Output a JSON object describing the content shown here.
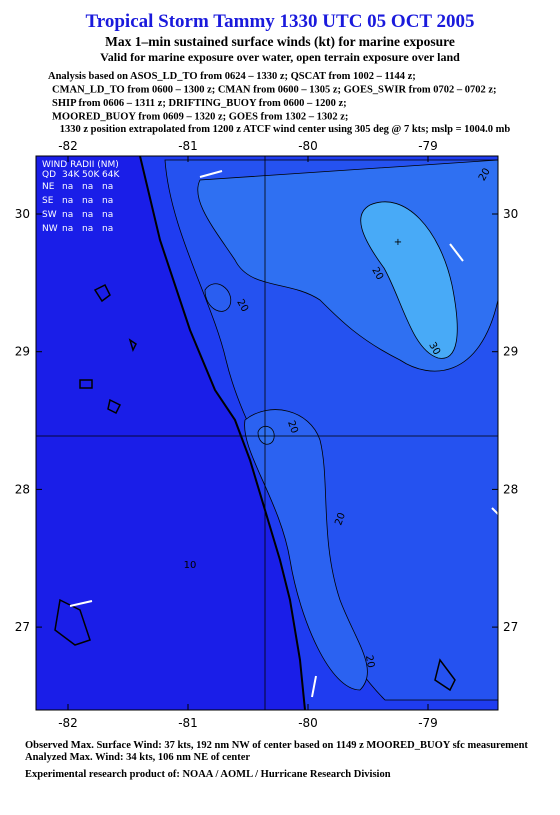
{
  "title": "Tropical Storm Tammy 1330 UTC 05 OCT 2005",
  "subtitle": "Max 1–min sustained surface winds (kt) for marine exposure",
  "subtitle2": "Valid for marine exposure over water, open terrain exposure over land",
  "analysis_lines": [
    "Analysis based on  ASOS_LD_TO from 0624 – 1330 z;  QSCAT from 1002 – 1144 z;",
    "CMAN_LD_TO from 0600 – 1300 z;  CMAN from 0600 – 1305 z;  GOES_SWIR from 0702 – 0702 z;",
    "SHIP from 0606 – 1311 z;  DRIFTING_BUOY from 0600 – 1200 z;",
    "MOORED_BUOY from 0609 – 1320 z;  GOES from 1302 – 1302 z;"
  ],
  "position_note": "1330 z position extrapolated from 1200 z ATCF wind center using 305 deg @ 7 kts; mslp = 1004.0 mb",
  "map": {
    "lon_ticks": [
      -82,
      -81,
      -80,
      -79
    ],
    "lat_ticks": [
      30,
      29,
      28,
      27
    ],
    "wind_radii": {
      "title": "WIND RADII (NM)",
      "header": [
        "QD",
        "34K",
        "50K",
        "64K"
      ],
      "rows": [
        [
          "NE",
          "na",
          "na",
          "na"
        ],
        [
          "SE",
          "na",
          "na",
          "na"
        ],
        [
          "SW",
          "na",
          "na",
          "na"
        ],
        [
          "NW",
          "na",
          "na",
          "na"
        ]
      ]
    },
    "contour_labels": [
      20,
      20,
      20,
      30,
      20,
      20,
      20,
      10
    ]
  },
  "footer": [
    "Observed Max. Surface Wind: 37 kts, 192 nm NW of center based on 1149 z MOORED_BUOY sfc measurement",
    "Analyzed Max. Wind: 34 kts, 106 nm NE of center",
    "Experimental research product of:  NOAA / AOML / Hurricane Research Division"
  ]
}
